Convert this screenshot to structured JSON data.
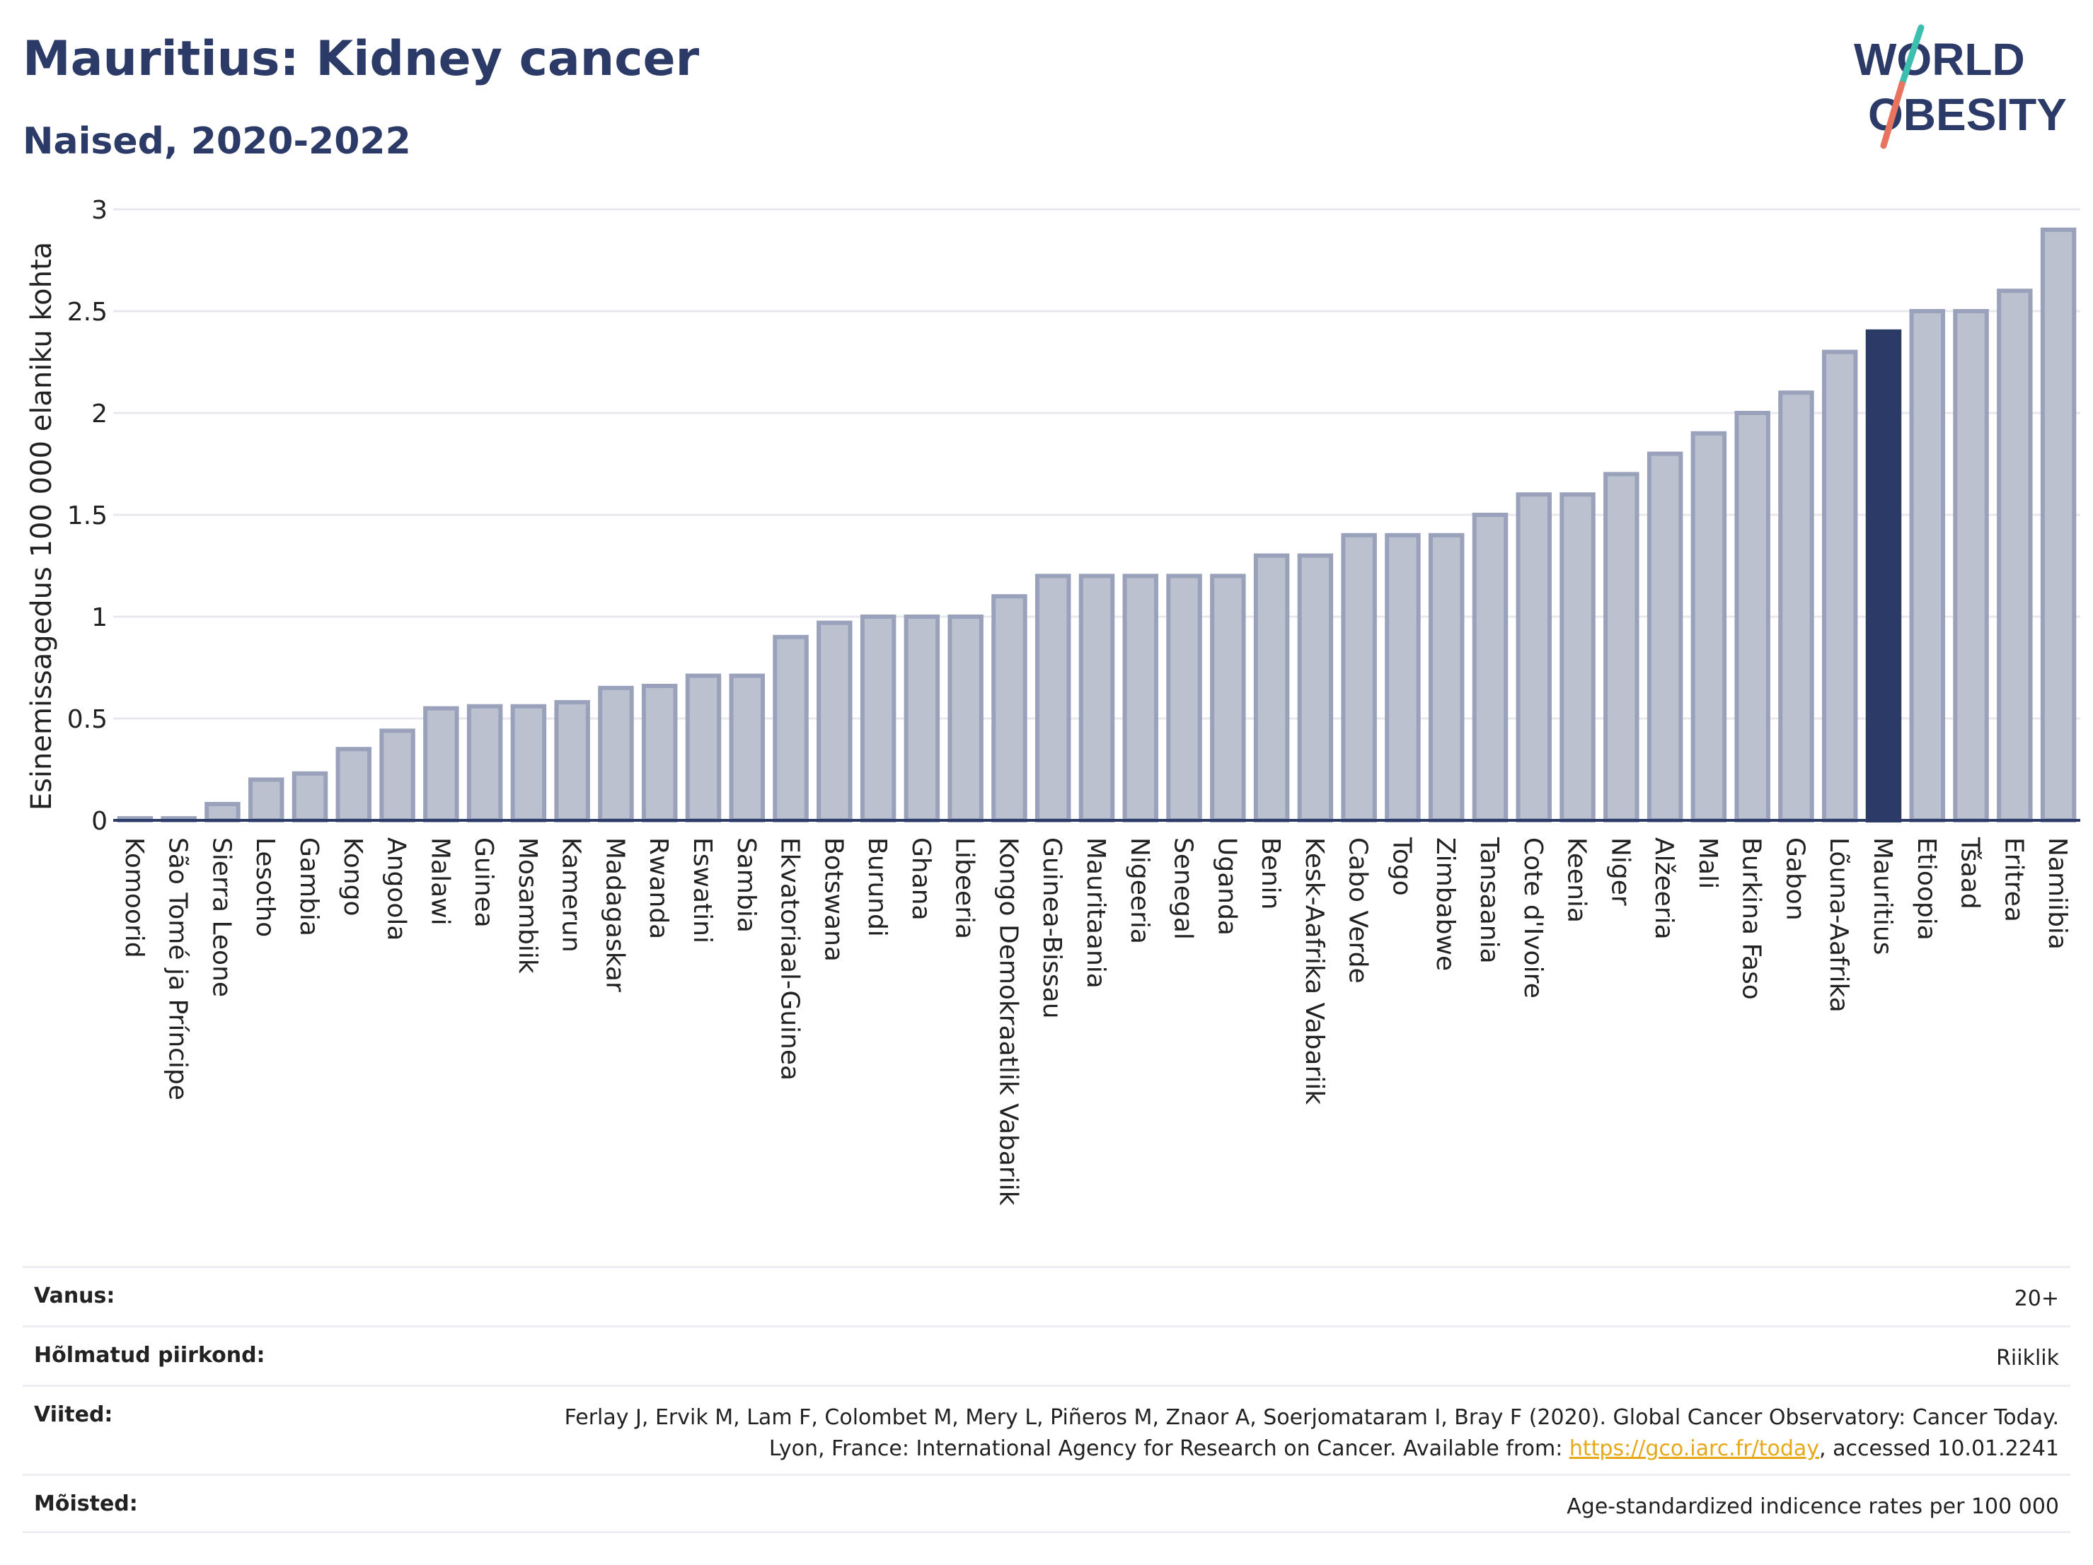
{
  "header": {
    "title": "Mauritius: Kidney cancer",
    "subtitle": "Naised, 2020-2022",
    "logo_text": "WORLD OBESITY"
  },
  "colors": {
    "bar": "#bcc1d0",
    "bar_stroke": "#9aa2bb",
    "highlight": "#2b3a67",
    "grid": "#e6e8ee",
    "axis": "#2b3a67",
    "logo_slash_teal": "#3cbfae",
    "logo_slash_red": "#e8735f"
  },
  "chart_data": {
    "type": "bar",
    "ylabel": "Esinemissagedus 100 000 elaniku kohta",
    "ylim": [
      0,
      3
    ],
    "yticks": [
      "0",
      "0.5",
      "1",
      "1.5",
      "2",
      "2.5",
      "3"
    ],
    "grid": true,
    "highlight": "Mauritius",
    "categories": [
      "Komoorid",
      "São Tomé ja Príncipe",
      "Sierra Leone",
      "Lesotho",
      "Gambia",
      "Kongo",
      "Angoola",
      "Malawi",
      "Guinea",
      "Mosambiik",
      "Kamerun",
      "Madagaskar",
      "Rwanda",
      "Eswatini",
      "Sambia",
      "Ekvatoriaal-Guinea",
      "Botswana",
      "Burundi",
      "Ghana",
      "Libeeria",
      "Kongo Demokraatlik Vabariik",
      "Guinea-Bissau",
      "Mauritaania",
      "Nigeeria",
      "Senegal",
      "Uganda",
      "Benin",
      "Kesk-Aafrika Vabariik",
      "Cabo Verde",
      "Togo",
      "Zimbabwe",
      "Tansaania",
      "Cote d'Ivoire",
      "Keenia",
      "Niger",
      "Alžeeria",
      "Mali",
      "Burkina Faso",
      "Gabon",
      "Lõuna-Aafrika",
      "Mauritius",
      "Etioopia",
      "Tšaad",
      "Eritrea",
      "Namiibia"
    ],
    "values": [
      0.01,
      0.01,
      0.08,
      0.2,
      0.23,
      0.35,
      0.44,
      0.55,
      0.56,
      0.56,
      0.58,
      0.65,
      0.66,
      0.71,
      0.71,
      0.9,
      0.97,
      1.0,
      1.0,
      1.0,
      1.1,
      1.2,
      1.2,
      1.2,
      1.2,
      1.2,
      1.3,
      1.3,
      1.4,
      1.4,
      1.4,
      1.5,
      1.6,
      1.6,
      1.7,
      1.8,
      1.9,
      2.0,
      2.1,
      2.3,
      2.4,
      2.5,
      2.5,
      2.6,
      2.9
    ]
  },
  "meta": {
    "age_label": "Vanus:",
    "age_value": "20+",
    "region_label": "Hõlmatud piirkond:",
    "region_value": "Riiklik",
    "refs_label": "Viited:",
    "refs_text": "Ferlay J, Ervik M, Lam F, Colombet M, Mery L, Piñeros M, Znaor A, Soerjomataram I, Bray F (2020). Global Cancer Observatory: Cancer Today. Lyon, France: International Agency for Research on Cancer. Available from: ",
    "refs_link": "https://gco.iarc.fr/today",
    "refs_suffix": ", accessed 10.01.2241",
    "defs_label": "Mõisted:",
    "defs_value": "Age-standardized indicence rates per 100 000"
  }
}
